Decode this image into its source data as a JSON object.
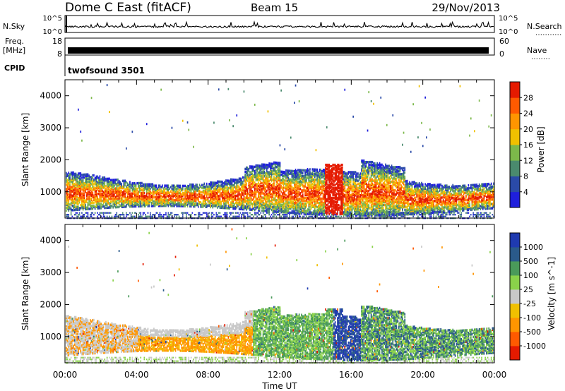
{
  "header": {
    "station": "Dome C East (fitACF)",
    "beam": "Beam 15",
    "date": "29/Nov/2013"
  },
  "aux_panels": {
    "nsky_label": "N.Sky",
    "nsky_ticks": [
      "10^5",
      "10^0"
    ],
    "nsearch_label": "N.Search",
    "nsearch_ticks": [
      "10^5",
      "10^0"
    ],
    "freq_label": "Freq.",
    "freq_unit": "[MHz]",
    "freq_ticks": [
      "18",
      "8"
    ],
    "nave_label": "Nave",
    "nave_ticks": [
      "60",
      "0"
    ],
    "cpid_label": "CPID",
    "cpid_value": "twofsound 3501"
  },
  "colors": {
    "power": [
      "#1f1fdc",
      "#2a4aa8",
      "#4a8a6e",
      "#7cb84a",
      "#f0c000",
      "#ff9500",
      "#ff5a00",
      "#e51a00"
    ],
    "velocity": [
      "#e51a00",
      "#ff5a00",
      "#ff9500",
      "#f0c000",
      "#c8c8c8",
      "#8ad24a",
      "#4a9a5a",
      "#2a5a8a",
      "#1f3ab0"
    ]
  },
  "chart_data": [
    {
      "type": "heatmap",
      "name": "power",
      "ylabel": "Slant Range [km]",
      "y_ticks": [
        "1000",
        "2000",
        "3000",
        "4000"
      ],
      "ylim": [
        180,
        4500
      ],
      "colorbar_label": "Power [dB]",
      "colorbar_ticks": [
        "4",
        "8",
        "12",
        "16",
        "20",
        "24",
        "28"
      ],
      "colorbar_range": [
        0,
        32
      ],
      "x_ticks": [
        "00:00",
        "04:00",
        "08:00",
        "12:00",
        "16:00",
        "20:00",
        "00:00"
      ],
      "xlim_hours": [
        0,
        24
      ],
      "dominant_band_km": [
        400,
        2000
      ]
    },
    {
      "type": "heatmap",
      "name": "velocity",
      "ylabel": "Slant Range [km]",
      "y_ticks": [
        "1000",
        "2000",
        "3000",
        "4000"
      ],
      "ylim": [
        180,
        4500
      ],
      "colorbar_label": "Velocity [m s^-1]",
      "colorbar_ticks": [
        "1000",
        "500",
        "100",
        "25",
        "-25",
        "-100",
        "-500",
        "-1000"
      ],
      "xlabel": "Time UT",
      "x_ticks": [
        "00:00",
        "04:00",
        "08:00",
        "12:00",
        "16:00",
        "20:00",
        "00:00"
      ],
      "xlim_hours": [
        0,
        24
      ],
      "dominant_band_km": [
        400,
        2000
      ]
    }
  ]
}
